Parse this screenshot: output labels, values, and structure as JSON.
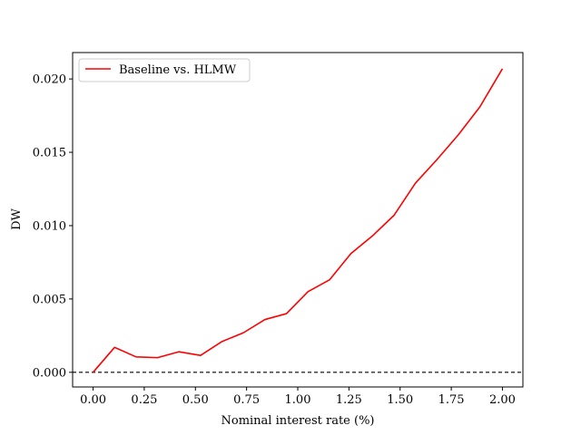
{
  "chart_data": {
    "type": "line",
    "title": "",
    "xlabel": "Nominal interest rate (%)",
    "ylabel": "DW",
    "xlim": [
      -0.1,
      2.1
    ],
    "ylim": [
      -0.001,
      0.0218
    ],
    "xticks": [
      0.0,
      0.25,
      0.5,
      0.75,
      1.0,
      1.25,
      1.5,
      1.75,
      2.0
    ],
    "xtick_labels": [
      "0.00",
      "0.25",
      "0.50",
      "0.75",
      "1.00",
      "1.25",
      "1.50",
      "1.75",
      "2.00"
    ],
    "yticks": [
      0.0,
      0.005,
      0.01,
      0.015,
      0.02
    ],
    "ytick_labels": [
      "0.000",
      "0.005",
      "0.010",
      "0.015",
      "0.020"
    ],
    "grid": false,
    "legend_position": "upper-left",
    "reference_line": {
      "y": 0.0,
      "style": "dashed",
      "color": "#000000"
    },
    "series": [
      {
        "name": "Baseline vs. HLMW",
        "color": "#ff0000",
        "x": [
          0.0,
          0.105,
          0.21,
          0.315,
          0.42,
          0.525,
          0.63,
          0.735,
          0.84,
          0.945,
          1.05,
          1.155,
          1.26,
          1.365,
          1.47,
          1.575,
          1.68,
          1.785,
          1.89,
          2.0
        ],
        "y": [
          0.0,
          0.0017,
          0.00105,
          0.001,
          0.0014,
          0.00115,
          0.0021,
          0.0027,
          0.0036,
          0.004,
          0.0055,
          0.0063,
          0.0081,
          0.0093,
          0.0107,
          0.0129,
          0.0145,
          0.0162,
          0.0181,
          0.0207
        ]
      }
    ]
  }
}
